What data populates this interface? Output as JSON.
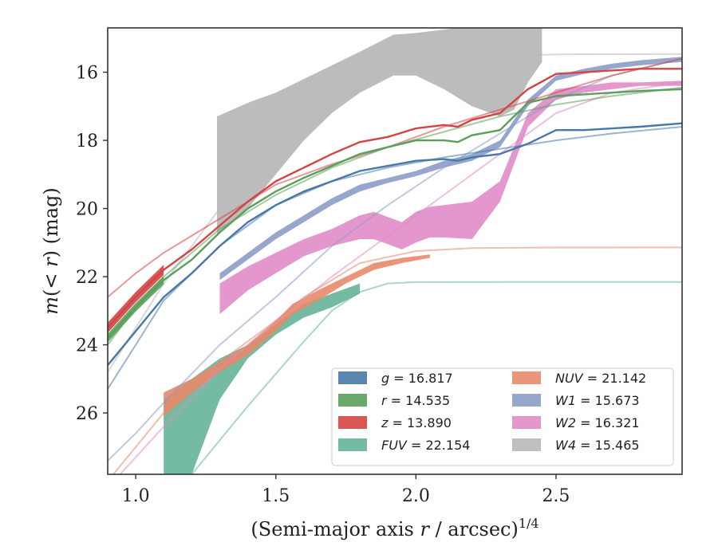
{
  "chart_data": {
    "type": "line",
    "xlabel_main": "(Semi-major axis ",
    "xlabel_r": "r",
    "xlabel_rest": " / arcsec)",
    "xlabel_exp": "1/4",
    "ylabel_m": "m",
    "ylabel_paren": "(< ",
    "ylabel_r": "r",
    "ylabel_rest": ") (mag)",
    "xlim": [
      0.9,
      2.95
    ],
    "ylim": [
      27.8,
      14.7
    ],
    "y_inverted": true,
    "grid": false,
    "legend_placement": "lower right",
    "x_ticks": [
      1.0,
      1.5,
      2.0,
      2.5
    ],
    "x_tick_labels": [
      "1.0",
      "1.5",
      "2.0",
      "2.5"
    ],
    "y_ticks": [
      16,
      18,
      20,
      22,
      24,
      26
    ],
    "y_tick_labels": [
      "16",
      "18",
      "20",
      "22",
      "24",
      "26"
    ],
    "series": [
      {
        "name": "g",
        "total": "16.817",
        "color": "#4878a8",
        "model": {
          "x": [
            0.9,
            1.0,
            1.1,
            1.3,
            1.5,
            1.7,
            1.9,
            2.1,
            2.3,
            2.5,
            2.7,
            2.95
          ],
          "y": [
            25.3,
            24.0,
            22.7,
            21.1,
            19.9,
            19.2,
            18.8,
            18.5,
            18.25,
            18.0,
            17.8,
            17.6
          ]
        },
        "data": {
          "x": [
            0.9,
            1.0,
            1.1,
            1.2,
            1.3,
            1.4,
            1.5,
            1.6,
            1.7,
            1.8,
            1.9,
            2.0,
            2.1,
            2.15,
            2.2,
            2.3,
            2.4,
            2.5,
            2.6,
            2.7,
            2.8,
            2.95
          ],
          "y": [
            24.6,
            23.6,
            22.6,
            21.9,
            21.1,
            20.4,
            19.9,
            19.5,
            19.2,
            18.9,
            18.75,
            18.6,
            18.55,
            18.6,
            18.5,
            18.4,
            18.1,
            17.7,
            17.7,
            17.65,
            17.6,
            17.5
          ]
        }
      },
      {
        "name": "r",
        "total": "14.535",
        "color": "#5aa05a",
        "model": {
          "x": [
            0.9,
            1.0,
            1.1,
            1.3,
            1.5,
            1.7,
            1.9,
            2.1,
            2.3,
            2.5,
            2.7,
            2.95
          ],
          "y": [
            24.0,
            22.9,
            22.0,
            20.6,
            19.6,
            18.8,
            18.2,
            17.75,
            17.3,
            16.95,
            16.7,
            16.45
          ]
        },
        "data": {
          "x": [
            0.9,
            1.0,
            1.1,
            1.2,
            1.3,
            1.4,
            1.5,
            1.6,
            1.7,
            1.8,
            1.9,
            2.0,
            2.1,
            2.15,
            2.2,
            2.3,
            2.4,
            2.5,
            2.6,
            2.7,
            2.8,
            2.95
          ],
          "y": [
            23.8,
            22.9,
            22.1,
            21.5,
            20.7,
            20.0,
            19.5,
            19.1,
            18.75,
            18.4,
            18.2,
            18.0,
            18.0,
            18.05,
            17.85,
            17.7,
            16.9,
            16.7,
            16.65,
            16.6,
            16.55,
            16.5
          ],
          "band": 0.25
        }
      },
      {
        "name": "z",
        "total": "13.890",
        "color": "#d44444",
        "model": {
          "x": [
            0.9,
            1.0,
            1.1,
            1.3,
            1.5,
            1.7,
            1.9,
            2.1,
            2.3,
            2.5,
            2.7,
            2.95
          ],
          "y": [
            22.6,
            21.9,
            21.3,
            20.3,
            19.3,
            18.7,
            18.2,
            17.6,
            17.1,
            16.6,
            16.1,
            15.6
          ]
        },
        "data": {
          "x": [
            0.9,
            1.0,
            1.1,
            1.2,
            1.3,
            1.4,
            1.5,
            1.6,
            1.7,
            1.8,
            1.9,
            2.0,
            2.1,
            2.15,
            2.2,
            2.3,
            2.4,
            2.5,
            2.6,
            2.7,
            2.8,
            2.95
          ],
          "y": [
            23.5,
            22.6,
            21.8,
            21.2,
            20.5,
            19.8,
            19.2,
            18.8,
            18.4,
            18.05,
            17.9,
            17.65,
            17.55,
            17.6,
            17.4,
            17.2,
            16.5,
            16.05,
            16.0,
            15.95,
            15.9,
            15.9
          ],
          "band": 0.3
        }
      },
      {
        "name": "FUV",
        "total": "22.154",
        "color": "#66b498",
        "model": {
          "x": [
            1.2,
            1.4,
            1.6,
            1.7,
            1.8,
            1.9,
            2.0,
            2.5,
            2.95
          ],
          "y": [
            27.8,
            25.8,
            23.9,
            23.0,
            22.45,
            22.2,
            22.16,
            22.155,
            22.155
          ]
        },
        "band": {
          "x": [
            1.1,
            1.2,
            1.3,
            1.4,
            1.5,
            1.6,
            1.7,
            1.8
          ],
          "y_upper": [
            25.6,
            25.0,
            24.4,
            24.0,
            23.4,
            22.8,
            22.5,
            22.2
          ],
          "y_lower": [
            27.8,
            27.8,
            25.6,
            24.4,
            23.7,
            23.2,
            22.9,
            22.5
          ]
        }
      },
      {
        "name": "NUV",
        "total": "21.142",
        "color": "#e8896a",
        "model": {
          "x": [
            0.9,
            1.1,
            1.3,
            1.5,
            1.6,
            1.8,
            2.0,
            2.2,
            2.5,
            2.95
          ],
          "y": [
            28.0,
            26.0,
            24.5,
            23.3,
            22.6,
            21.6,
            21.25,
            21.16,
            21.145,
            21.142
          ]
        },
        "band": {
          "x": [
            1.1,
            1.2,
            1.3,
            1.4,
            1.5,
            1.56,
            1.65,
            1.75,
            1.85,
            1.95,
            2.05
          ],
          "y_upper": [
            25.4,
            25.0,
            24.5,
            24.0,
            23.3,
            22.8,
            22.4,
            22.0,
            21.6,
            21.45,
            21.35
          ],
          "y_lower": [
            26.1,
            25.4,
            24.8,
            24.3,
            23.6,
            23.1,
            22.7,
            22.2,
            21.8,
            21.6,
            21.45
          ]
        }
      },
      {
        "name": "W1",
        "total": "15.673",
        "color": "#8c9cc8",
        "model": {
          "x": [
            0.9,
            1.0,
            1.1,
            1.3,
            1.5,
            1.7,
            1.9,
            2.1,
            2.3,
            2.5,
            2.7,
            2.95
          ],
          "y": [
            27.4,
            26.6,
            25.7,
            24.0,
            22.6,
            21.1,
            19.9,
            18.8,
            17.8,
            16.8,
            16.1,
            15.6
          ]
        },
        "band": {
          "x": [
            1.3,
            1.4,
            1.5,
            1.6,
            1.7,
            1.8,
            1.9,
            2.0,
            2.1,
            2.2,
            2.3,
            2.4,
            2.5,
            2.6,
            2.7,
            2.8,
            2.95
          ],
          "y_upper": [
            21.9,
            21.3,
            20.7,
            20.2,
            19.7,
            19.3,
            19.1,
            18.9,
            18.6,
            18.4,
            18.0,
            16.8,
            16.1,
            15.9,
            15.75,
            15.65,
            15.55
          ],
          "y_lower": [
            22.1,
            21.5,
            20.9,
            20.4,
            19.9,
            19.5,
            19.25,
            19.05,
            18.8,
            18.6,
            18.2,
            17.0,
            16.25,
            16.05,
            15.9,
            15.8,
            15.7
          ]
        }
      },
      {
        "name": "W2",
        "total": "16.321",
        "color": "#e08cc8",
        "model": {
          "x": [
            0.9,
            1.1,
            1.3,
            1.5,
            1.7,
            1.9,
            2.1,
            2.3,
            2.5,
            2.7,
            2.95
          ],
          "y": [
            28.2,
            26.4,
            24.7,
            23.3,
            22.0,
            20.8,
            19.6,
            18.4,
            17.2,
            16.6,
            16.3
          ]
        },
        "band": {
          "x": [
            1.3,
            1.4,
            1.5,
            1.6,
            1.7,
            1.8,
            1.85,
            1.95,
            2.0,
            2.05,
            2.1,
            2.2,
            2.3,
            2.4,
            2.5,
            2.6,
            2.7,
            2.8,
            2.95
          ],
          "y_upper": [
            22.2,
            21.7,
            21.3,
            20.9,
            20.6,
            20.2,
            20.1,
            20.4,
            20.1,
            19.95,
            19.9,
            19.8,
            19.2,
            17.2,
            16.5,
            16.4,
            16.3,
            16.3,
            16.25
          ],
          "y_lower": [
            23.1,
            22.4,
            21.9,
            21.4,
            21.1,
            20.9,
            20.9,
            21.2,
            21.0,
            20.85,
            20.85,
            20.9,
            19.8,
            17.6,
            16.8,
            16.6,
            16.5,
            16.4,
            16.4
          ]
        }
      },
      {
        "name": "W4",
        "total": "15.465",
        "color": "#b8b8b8",
        "model": {
          "x": [
            0.9,
            1.1,
            1.3,
            1.5,
            1.7,
            1.9,
            2.1,
            2.5,
            2.95
          ],
          "y": [
            24.8,
            22.2,
            20.0,
            18.3,
            17.0,
            16.0,
            15.6,
            15.48,
            15.465
          ]
        },
        "band": {
          "x": [
            1.29,
            1.4,
            1.5,
            1.6,
            1.7,
            1.8,
            1.92,
            2.0,
            2.1,
            2.2,
            2.3,
            2.35,
            2.4,
            2.45
          ],
          "y_upper": [
            17.3,
            16.9,
            16.6,
            16.2,
            15.8,
            15.4,
            14.9,
            14.85,
            14.75,
            14.65,
            14.6,
            14.6,
            14.7,
            14.65
          ],
          "y_lower": [
            20.8,
            20.0,
            19.0,
            18.0,
            17.2,
            16.6,
            16.1,
            16.1,
            16.5,
            17.0,
            17.3,
            17.1,
            16.3,
            15.7
          ]
        }
      }
    ]
  }
}
